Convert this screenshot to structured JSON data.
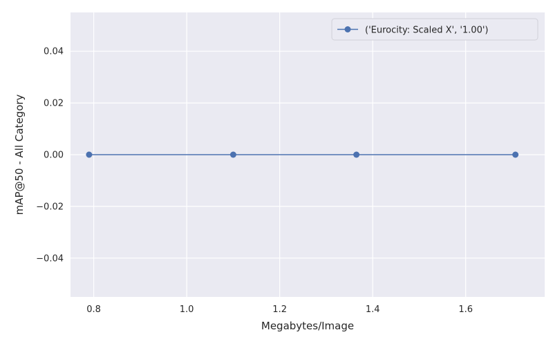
{
  "chart_data": {
    "type": "line",
    "xlabel": "Megabytes/Image",
    "ylabel": "mAP@50 - All Category",
    "xlim": [
      0.75,
      1.77
    ],
    "ylim": [
      -0.055,
      0.055
    ],
    "xticks": [
      0.8,
      1.0,
      1.2,
      1.4,
      1.6
    ],
    "xtick_labels": [
      "0.8",
      "1.0",
      "1.2",
      "1.4",
      "1.6"
    ],
    "yticks": [
      -0.04,
      -0.02,
      0.0,
      0.02,
      0.04
    ],
    "ytick_labels": [
      "−0.04",
      "−0.02",
      "0.00",
      "0.02",
      "0.04"
    ],
    "grid": true,
    "legend_position": "top-right",
    "series": [
      {
        "name": "('Eurocity: Scaled X', '1.00')",
        "color": "#4c72b0",
        "marker": "circle",
        "x": [
          0.79,
          1.1,
          1.365,
          1.707
        ],
        "y": [
          0.0,
          0.0,
          0.0,
          0.0
        ]
      }
    ]
  }
}
